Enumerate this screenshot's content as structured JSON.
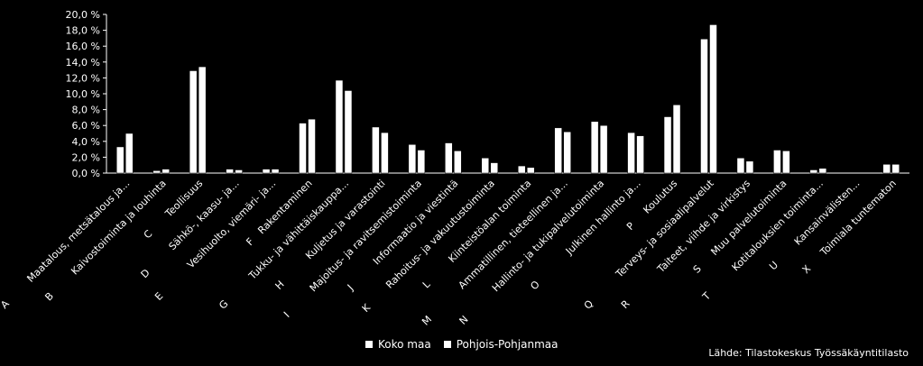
{
  "chart_data": {
    "type": "bar",
    "title": "",
    "xlabel": "",
    "ylabel": "",
    "ylim": [
      0,
      20
    ],
    "yticks": [
      "0,0 %",
      "2,0 %",
      "4,0 %",
      "6,0 %",
      "8,0 %",
      "10,0 %",
      "12,0 %",
      "14,0 %",
      "16,0 %",
      "18,0 %",
      "20,0 %"
    ],
    "grid": false,
    "legend_position": "bottom",
    "categories": [
      {
        "code": "A",
        "label": "Maatalous, metsätalous ja..."
      },
      {
        "code": "B",
        "label": "Kaivostoiminta ja louhinta"
      },
      {
        "code": "C",
        "label": "Teollisuus"
      },
      {
        "code": "D",
        "label": "Sähkö-, kaasu- ja..."
      },
      {
        "code": "E",
        "label": "Vesihuolto, viemäri- ja..."
      },
      {
        "code": "F",
        "label": "Rakentaminen"
      },
      {
        "code": "G",
        "label": "Tukku- ja vähittäiskauppa..."
      },
      {
        "code": "H",
        "label": "Kuljetus ja varastointi"
      },
      {
        "code": "I",
        "label": "Majoitus- ja ravitsemistoiminta"
      },
      {
        "code": "J",
        "label": "Informaatio ja viestintä"
      },
      {
        "code": "K",
        "label": "Rahoitus- ja vakuutustoiminta"
      },
      {
        "code": "L",
        "label": "Kiinteistöalan toiminta"
      },
      {
        "code": "M",
        "label": "Ammatillinen, tieteellinen ja..."
      },
      {
        "code": "N",
        "label": "Hallinto- ja tukipalvelutoiminta"
      },
      {
        "code": "O",
        "label": "Julkinen hallinto ja..."
      },
      {
        "code": "P",
        "label": "Koulutus"
      },
      {
        "code": "Q",
        "label": "Terveys- ja sosiaalipalvelut"
      },
      {
        "code": "R",
        "label": "Taiteet, viihde ja virkistys"
      },
      {
        "code": "S",
        "label": "Muu palvelutoiminta"
      },
      {
        "code": "T",
        "label": "Kotitalouksien toiminta..."
      },
      {
        "code": "U",
        "label": "Kansainvälisten..."
      },
      {
        "code": "X",
        "label": "Toimiala tuntematon"
      }
    ],
    "series": [
      {
        "name": "Koko maa",
        "values": [
          3.3,
          0.3,
          12.9,
          0.5,
          0.5,
          6.3,
          11.7,
          5.8,
          3.6,
          3.8,
          1.9,
          0.9,
          5.7,
          6.5,
          5.1,
          7.1,
          16.9,
          1.9,
          2.9,
          0.4,
          0.0,
          1.1
        ]
      },
      {
        "name": "Pohjois-Pohjanmaa",
        "values": [
          5.0,
          0.5,
          13.4,
          0.4,
          0.5,
          6.8,
          10.4,
          5.1,
          2.9,
          2.8,
          1.3,
          0.7,
          5.2,
          6.0,
          4.7,
          8.6,
          18.7,
          1.5,
          2.8,
          0.6,
          0.0,
          1.1
        ]
      }
    ]
  },
  "legend": {
    "items": [
      "Koko maa",
      "Pohjois-Pohjanmaa"
    ]
  },
  "source": "Lähde: Tilastokeskus Työssäkäyntitilasto"
}
